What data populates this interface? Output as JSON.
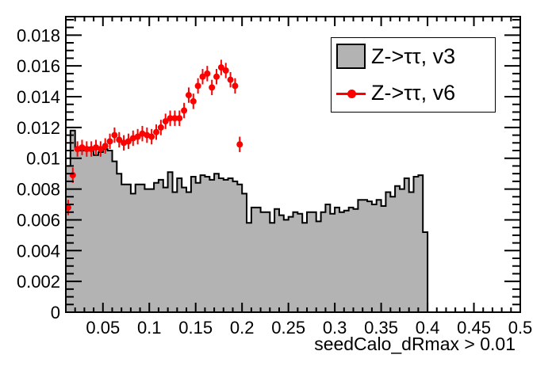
{
  "chart_data": {
    "type": "bar",
    "title": "",
    "xlabel": "seedCalo_dRmax > 0.01",
    "ylabel": "",
    "xlim": [
      0.01,
      0.5
    ],
    "ylim": [
      0,
      0.0192
    ],
    "grid": false,
    "legend_position": "top-right",
    "xticks": [
      "0.05",
      "0.1",
      "0.15",
      "0.2",
      "0.25",
      "0.3",
      "0.35",
      "0.4",
      "0.45",
      "0.5"
    ],
    "yticks": [
      "0",
      "0.002",
      "0.004",
      "0.006",
      "0.008",
      "0.01",
      "0.012",
      "0.014",
      "0.016",
      "0.018"
    ],
    "x_minor_step": 0.01,
    "y_minor_step": 0.0005,
    "colors": {
      "v3_fill": "#b3b3b3",
      "outline": "#000000",
      "v6_red": "#ff0000"
    },
    "series": [
      {
        "name": "Z->ττ, v3",
        "type": "histogram-filled-step",
        "fill_color": "#b3b3b3",
        "line_color": "#000000",
        "bin_start": 0.01,
        "bin_width": 0.005,
        "values": [
          0.0095,
          0.0118,
          0.0107,
          0.0105,
          0.0107,
          0.0105,
          0.0102,
          0.0104,
          0.0106,
          0.0105,
          0.0098,
          0.009,
          0.0083,
          0.0083,
          0.0077,
          0.0083,
          0.0083,
          0.008,
          0.008,
          0.0084,
          0.0086,
          0.0081,
          0.0091,
          0.0078,
          0.0087,
          0.0081,
          0.0078,
          0.0088,
          0.0084,
          0.0089,
          0.0088,
          0.0086,
          0.009,
          0.0087,
          0.0086,
          0.0087,
          0.0085,
          0.0083,
          0.0077,
          0.0058,
          0.0068,
          0.0068,
          0.0065,
          0.0065,
          0.0058,
          0.0067,
          0.0063,
          0.006,
          0.0062,
          0.0065,
          0.0064,
          0.0058,
          0.0065,
          0.0065,
          0.0059,
          0.0065,
          0.007,
          0.0064,
          0.0068,
          0.0065,
          0.0066,
          0.0068,
          0.0067,
          0.0073,
          0.0073,
          0.0072,
          0.007,
          0.0073,
          0.0069,
          0.0078,
          0.0075,
          0.0082,
          0.008,
          0.0087,
          0.0078,
          0.0088,
          0.0089,
          0.0052
        ]
      },
      {
        "name": "Z->ττ, v6",
        "type": "scatter-error-bars",
        "color": "#ff0000",
        "x": [
          0.0125,
          0.0175,
          0.0225,
          0.0275,
          0.0325,
          0.0375,
          0.0425,
          0.0475,
          0.0525,
          0.0575,
          0.0625,
          0.0675,
          0.0725,
          0.0775,
          0.0825,
          0.0875,
          0.0925,
          0.0975,
          0.1025,
          0.1075,
          0.1125,
          0.1175,
          0.1225,
          0.1275,
          0.1325,
          0.1375,
          0.1425,
          0.1475,
          0.1525,
          0.1575,
          0.1625,
          0.1675,
          0.1725,
          0.1775,
          0.1825,
          0.1875,
          0.1925,
          0.1975
        ],
        "y": [
          0.0068,
          0.0089,
          0.0106,
          0.0107,
          0.0106,
          0.0106,
          0.0107,
          0.0106,
          0.0108,
          0.0111,
          0.0115,
          0.0112,
          0.011,
          0.0111,
          0.0113,
          0.0114,
          0.0116,
          0.0115,
          0.0114,
          0.0117,
          0.012,
          0.0124,
          0.0126,
          0.0126,
          0.0126,
          0.0131,
          0.0141,
          0.0137,
          0.0147,
          0.0153,
          0.0155,
          0.0146,
          0.0153,
          0.0159,
          0.0157,
          0.0151,
          0.0147,
          0.0109
        ],
        "yerr": 0.0005,
        "xerr": 0.0025
      }
    ]
  }
}
